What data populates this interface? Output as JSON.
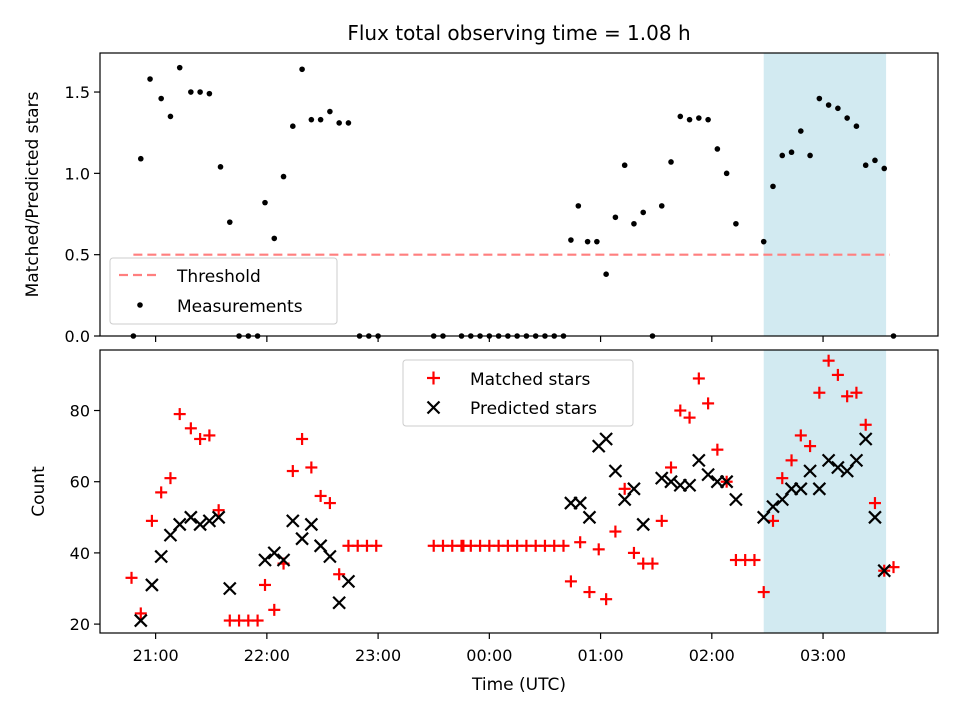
{
  "title": "Flux total observing time = 1.08 h",
  "chart_data": [
    {
      "type": "scatter",
      "ylabel": "Matched/Predicted stars",
      "ylim": [
        0,
        1.74
      ],
      "yticks": [
        0,
        0.5,
        1.0,
        1.5
      ],
      "ytick_labels": [
        "0.0",
        "0.5",
        "1.0",
        "1.5"
      ],
      "threshold": {
        "label": "Threshold",
        "value": 0.5,
        "x_range": [
          "20:48",
          "03:36"
        ],
        "color": "#ff7f7f"
      },
      "highlight": {
        "x_range": [
          "02:28",
          "03:34"
        ],
        "color": "#add8e6"
      },
      "legend": {
        "placement": "lower-left",
        "entries": [
          "Threshold",
          "Measurements"
        ]
      },
      "series": [
        {
          "name": "Measurements",
          "color": "#000000",
          "points": [
            [
              "20:48",
              0.0
            ],
            [
              "20:52",
              1.09
            ],
            [
              "20:57",
              1.58
            ],
            [
              "21:03",
              1.46
            ],
            [
              "21:08",
              1.35
            ],
            [
              "21:13",
              1.65
            ],
            [
              "21:19",
              1.5
            ],
            [
              "21:24",
              1.5
            ],
            [
              "21:29",
              1.49
            ],
            [
              "21:35",
              1.04
            ],
            [
              "21:40",
              0.7
            ],
            [
              "21:45",
              0.0
            ],
            [
              "21:50",
              0.0
            ],
            [
              "21:55",
              0.0
            ],
            [
              "21:59",
              0.82
            ],
            [
              "22:04",
              0.6
            ],
            [
              "22:09",
              0.98
            ],
            [
              "22:14",
              1.29
            ],
            [
              "22:19",
              1.64
            ],
            [
              "22:24",
              1.33
            ],
            [
              "22:29",
              1.33
            ],
            [
              "22:34",
              1.38
            ],
            [
              "22:39",
              1.31
            ],
            [
              "22:44",
              1.31
            ],
            [
              "22:50",
              0.0
            ],
            [
              "22:55",
              0.0
            ],
            [
              "23:00",
              0.0
            ],
            [
              "23:30",
              0.0
            ],
            [
              "23:35",
              0.0
            ],
            [
              "23:45",
              0.0
            ],
            [
              "23:50",
              0.0
            ],
            [
              "23:55",
              0.0
            ],
            [
              "00:00",
              0.0
            ],
            [
              "00:05",
              0.0
            ],
            [
              "00:10",
              0.0
            ],
            [
              "00:15",
              0.0
            ],
            [
              "00:20",
              0.0
            ],
            [
              "00:25",
              0.0
            ],
            [
              "00:30",
              0.0
            ],
            [
              "00:35",
              0.0
            ],
            [
              "00:40",
              0.0
            ],
            [
              "00:44",
              0.59
            ],
            [
              "00:48",
              0.8
            ],
            [
              "00:53",
              0.58
            ],
            [
              "00:58",
              0.58
            ],
            [
              "01:03",
              0.38
            ],
            [
              "01:08",
              0.73
            ],
            [
              "01:13",
              1.05
            ],
            [
              "01:18",
              0.69
            ],
            [
              "01:23",
              0.76
            ],
            [
              "01:28",
              0.0
            ],
            [
              "01:33",
              0.8
            ],
            [
              "01:38",
              1.07
            ],
            [
              "01:43",
              1.35
            ],
            [
              "01:48",
              1.33
            ],
            [
              "01:53",
              1.34
            ],
            [
              "01:58",
              1.33
            ],
            [
              "02:03",
              1.15
            ],
            [
              "02:08",
              1.0
            ],
            [
              "02:13",
              0.69
            ],
            [
              "02:28",
              0.58
            ],
            [
              "02:33",
              0.92
            ],
            [
              "02:38",
              1.11
            ],
            [
              "02:43",
              1.13
            ],
            [
              "02:48",
              1.26
            ],
            [
              "02:53",
              1.11
            ],
            [
              "02:58",
              1.46
            ],
            [
              "03:03",
              1.42
            ],
            [
              "03:08",
              1.4
            ],
            [
              "03:13",
              1.34
            ],
            [
              "03:18",
              1.29
            ],
            [
              "03:23",
              1.05
            ],
            [
              "03:28",
              1.08
            ],
            [
              "03:33",
              1.03
            ],
            [
              "03:38",
              0.0
            ]
          ]
        }
      ]
    },
    {
      "type": "scatter",
      "xlabel": "Time (UTC)",
      "ylabel": "Count",
      "ylim": [
        17.5,
        97
      ],
      "yticks": [
        20,
        40,
        60,
        80
      ],
      "ytick_labels": [
        "20",
        "40",
        "60",
        "80"
      ],
      "xticks": [
        "21:00",
        "22:00",
        "23:00",
        "00:00",
        "01:00",
        "02:00",
        "03:00"
      ],
      "xlim": [
        "20:30",
        "04:02"
      ],
      "highlight": {
        "x_range": [
          "02:28",
          "03:34"
        ],
        "color": "#add8e6"
      },
      "legend": {
        "placement": "upper-center",
        "entries": [
          "Matched stars",
          "Predicted stars"
        ]
      },
      "series": [
        {
          "name": "Matched stars",
          "marker": "+",
          "color": "#ff0000",
          "points": [
            [
              "20:47",
              33
            ],
            [
              "20:52",
              23
            ],
            [
              "20:58",
              49
            ],
            [
              "21:03",
              57
            ],
            [
              "21:08",
              61
            ],
            [
              "21:13",
              79
            ],
            [
              "21:19",
              75
            ],
            [
              "21:24",
              72
            ],
            [
              "21:29",
              73
            ],
            [
              "21:34",
              52
            ],
            [
              "21:40",
              21
            ],
            [
              "21:45",
              21
            ],
            [
              "21:50",
              21
            ],
            [
              "21:55",
              21
            ],
            [
              "21:59",
              31
            ],
            [
              "22:04",
              24
            ],
            [
              "22:09",
              37
            ],
            [
              "22:14",
              63
            ],
            [
              "22:19",
              72
            ],
            [
              "22:24",
              64
            ],
            [
              "22:29",
              56
            ],
            [
              "22:34",
              54
            ],
            [
              "22:39",
              34
            ],
            [
              "22:44",
              42
            ],
            [
              "22:49",
              42
            ],
            [
              "22:54",
              42
            ],
            [
              "22:59",
              42
            ],
            [
              "23:30",
              42
            ],
            [
              "23:35",
              42
            ],
            [
              "23:40",
              42
            ],
            [
              "23:45",
              42
            ],
            [
              "23:46",
              42
            ],
            [
              "23:50",
              42
            ],
            [
              "23:55",
              42
            ],
            [
              "00:00",
              42
            ],
            [
              "00:05",
              42
            ],
            [
              "00:10",
              42
            ],
            [
              "00:15",
              42
            ],
            [
              "00:20",
              42
            ],
            [
              "00:25",
              42
            ],
            [
              "00:30",
              42
            ],
            [
              "00:35",
              42
            ],
            [
              "00:40",
              42
            ],
            [
              "00:44",
              32
            ],
            [
              "00:49",
              43
            ],
            [
              "00:54",
              29
            ],
            [
              "00:59",
              41
            ],
            [
              "01:03",
              27
            ],
            [
              "01:08",
              46
            ],
            [
              "01:13",
              58
            ],
            [
              "01:18",
              40
            ],
            [
              "01:23",
              37
            ],
            [
              "01:28",
              37
            ],
            [
              "01:33",
              49
            ],
            [
              "01:38",
              64
            ],
            [
              "01:43",
              80
            ],
            [
              "01:48",
              78
            ],
            [
              "01:53",
              89
            ],
            [
              "01:58",
              82
            ],
            [
              "02:03",
              69
            ],
            [
              "02:08",
              60
            ],
            [
              "02:13",
              38
            ],
            [
              "02:18",
              38
            ],
            [
              "02:23",
              38
            ],
            [
              "02:28",
              29
            ],
            [
              "02:33",
              49
            ],
            [
              "02:38",
              61
            ],
            [
              "02:43",
              66
            ],
            [
              "02:48",
              73
            ],
            [
              "02:53",
              70
            ],
            [
              "02:58",
              85
            ],
            [
              "03:03",
              94
            ],
            [
              "03:08",
              90
            ],
            [
              "03:13",
              84
            ],
            [
              "03:18",
              85
            ],
            [
              "03:23",
              76
            ],
            [
              "03:28",
              54
            ],
            [
              "03:33",
              35
            ],
            [
              "03:38",
              36
            ]
          ]
        },
        {
          "name": "Predicted stars",
          "marker": "x",
          "color": "#000000",
          "points": [
            [
              "20:52",
              21
            ],
            [
              "20:58",
              31
            ],
            [
              "21:03",
              39
            ],
            [
              "21:08",
              45
            ],
            [
              "21:13",
              48
            ],
            [
              "21:19",
              50
            ],
            [
              "21:24",
              48
            ],
            [
              "21:29",
              49
            ],
            [
              "21:34",
              50
            ],
            [
              "21:40",
              30
            ],
            [
              "21:59",
              38
            ],
            [
              "22:04",
              40
            ],
            [
              "22:09",
              38
            ],
            [
              "22:14",
              49
            ],
            [
              "22:19",
              44
            ],
            [
              "22:24",
              48
            ],
            [
              "22:29",
              42
            ],
            [
              "22:34",
              39
            ],
            [
              "22:39",
              26
            ],
            [
              "22:44",
              32
            ],
            [
              "00:44",
              54
            ],
            [
              "00:49",
              54
            ],
            [
              "00:54",
              50
            ],
            [
              "00:59",
              70
            ],
            [
              "01:03",
              72
            ],
            [
              "01:08",
              63
            ],
            [
              "01:13",
              55
            ],
            [
              "01:18",
              58
            ],
            [
              "01:23",
              48
            ],
            [
              "01:33",
              61
            ],
            [
              "01:38",
              60
            ],
            [
              "01:43",
              59
            ],
            [
              "01:48",
              59
            ],
            [
              "01:53",
              66
            ],
            [
              "01:58",
              62
            ],
            [
              "02:03",
              60
            ],
            [
              "02:08",
              60
            ],
            [
              "02:13",
              55
            ],
            [
              "02:28",
              50
            ],
            [
              "02:33",
              53
            ],
            [
              "02:38",
              55
            ],
            [
              "02:43",
              58
            ],
            [
              "02:48",
              58
            ],
            [
              "02:53",
              63
            ],
            [
              "02:58",
              58
            ],
            [
              "03:03",
              66
            ],
            [
              "03:08",
              64
            ],
            [
              "03:13",
              63
            ],
            [
              "03:18",
              66
            ],
            [
              "03:23",
              72
            ],
            [
              "03:28",
              50
            ],
            [
              "03:33",
              35
            ]
          ]
        }
      ]
    }
  ]
}
